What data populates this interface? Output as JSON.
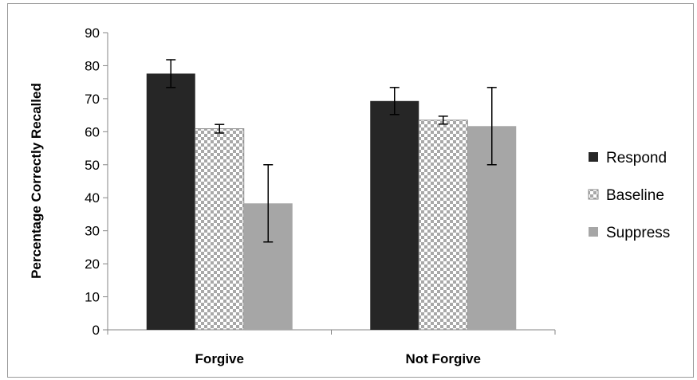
{
  "chart_data": {
    "type": "bar",
    "title": "",
    "xlabel": "",
    "ylabel": "Percentage Correctly Recalled",
    "ylim": [
      0,
      90
    ],
    "yticks": [
      0,
      10,
      20,
      30,
      40,
      50,
      60,
      70,
      80,
      90
    ],
    "categories": [
      "Forgive",
      "Not Forgive"
    ],
    "series": [
      {
        "name": "Respond",
        "values": [
          77.6,
          69.3
        ],
        "error": [
          4.2,
          4.1
        ],
        "color": "#262626",
        "pattern": "solid"
      },
      {
        "name": "Baseline",
        "values": [
          60.9,
          63.5
        ],
        "error": [
          1.3,
          1.2
        ],
        "color": "#bfbfbf",
        "pattern": "checker"
      },
      {
        "name": "Suppress",
        "values": [
          38.3,
          61.7
        ],
        "error": [
          11.7,
          11.7
        ],
        "color": "#a6a6a6",
        "pattern": "solid"
      }
    ],
    "grid": false,
    "legend": "right"
  }
}
